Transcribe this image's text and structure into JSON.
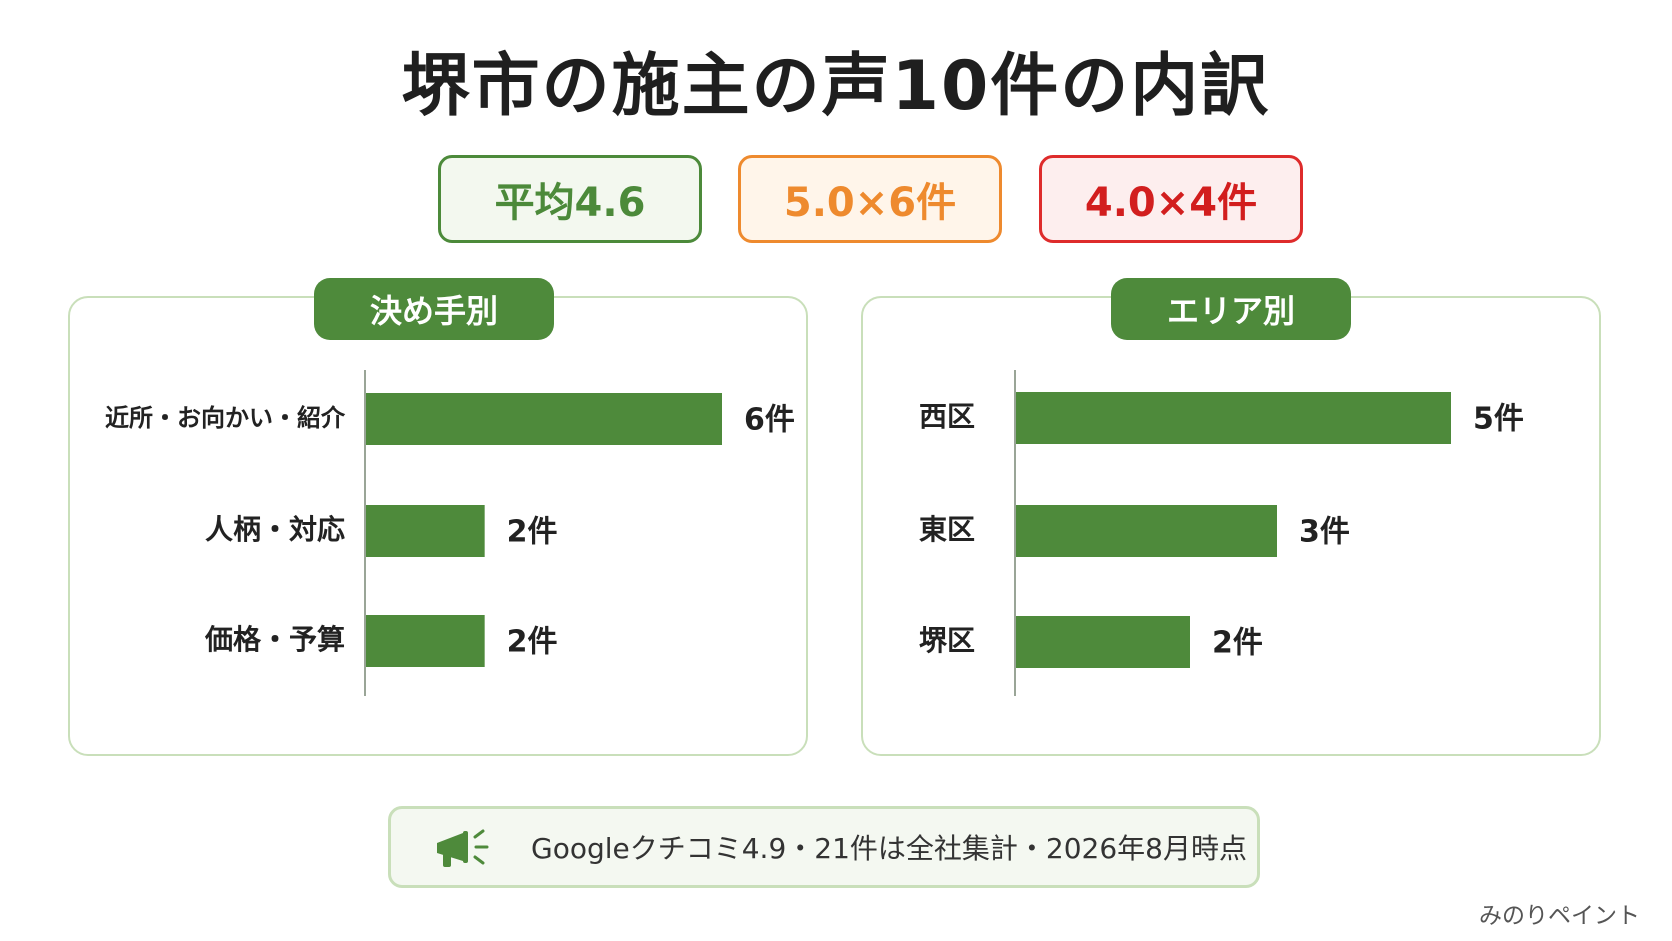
{
  "title": "堺市の施主の声10件の内訳",
  "stats": {
    "average": "平均4.6",
    "five": "5.0×6件",
    "four": "4.0×4件"
  },
  "chart_data": [
    {
      "type": "bar",
      "orientation": "horizontal",
      "title": "決め手別",
      "categories": [
        "近所・お向かい・紹介",
        "人柄・対応",
        "価格・予算"
      ],
      "values": [
        6,
        2,
        2
      ],
      "value_labels": [
        "6件",
        "2件",
        "2件"
      ],
      "xlim": [
        0,
        6
      ],
      "color": "#4e8a3b"
    },
    {
      "type": "bar",
      "orientation": "horizontal",
      "title": "エリア別",
      "categories": [
        "西区",
        "東区",
        "堺区"
      ],
      "values": [
        5,
        3,
        2
      ],
      "value_labels": [
        "5件",
        "3件",
        "2件"
      ],
      "xlim": [
        0,
        5
      ],
      "color": "#4e8a3b"
    }
  ],
  "footer": {
    "icon": "megaphone-icon",
    "text": "Googleクチコミ4.9・21件は全社集計・2026年8月時点"
  },
  "brand": "みのりペイント"
}
